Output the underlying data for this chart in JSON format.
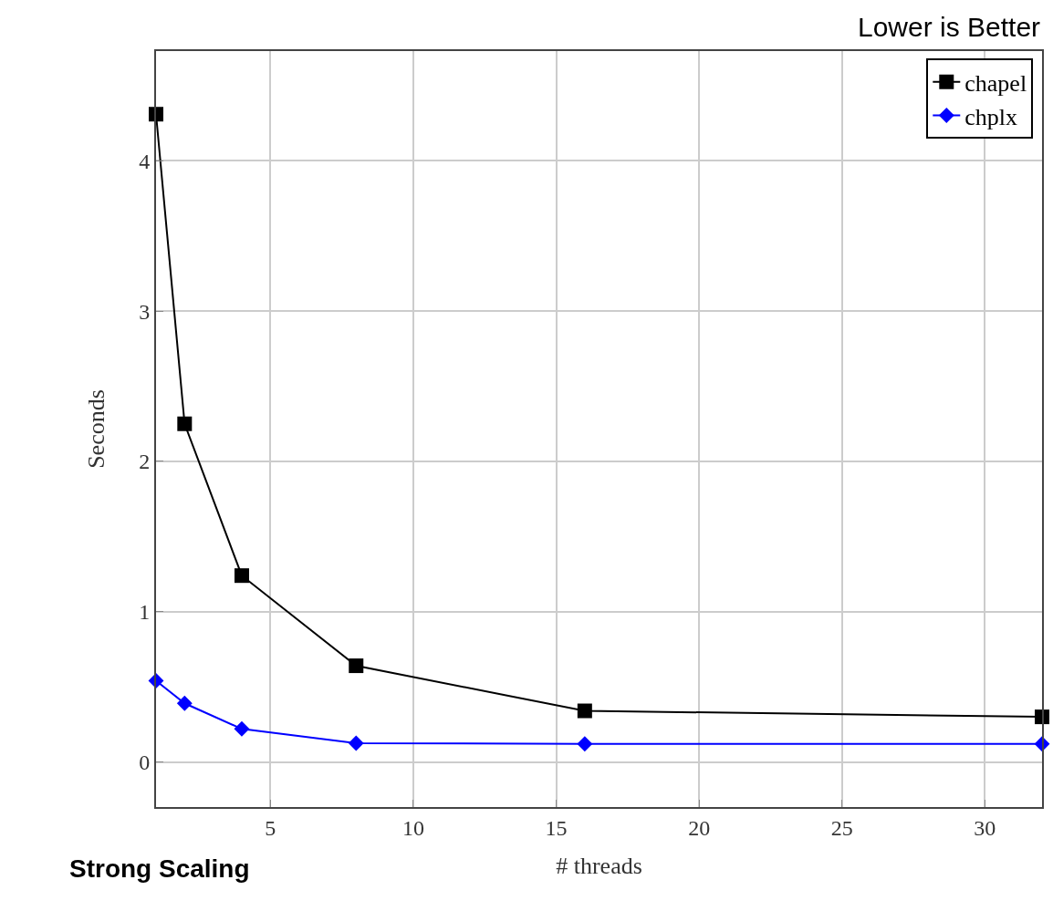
{
  "chart_data": {
    "type": "line",
    "xlabel": "# threads",
    "ylabel": "Seconds",
    "x": [
      1,
      2,
      4,
      8,
      16,
      32
    ],
    "series": [
      {
        "name": "chapel",
        "color": "#000000",
        "marker": "square",
        "values": [
          4.31,
          2.25,
          1.24,
          0.64,
          0.34,
          0.3
        ]
      },
      {
        "name": "chplx",
        "color": "#0000ff",
        "marker": "diamond",
        "values": [
          0.54,
          0.39,
          0.22,
          0.125,
          0.12,
          0.12
        ]
      }
    ],
    "xlim": [
      1,
      32
    ],
    "xticks": [
      5,
      10,
      15,
      20,
      25,
      30
    ],
    "ylim": [
      -0.3,
      4.73
    ],
    "yticks": [
      0,
      1,
      2,
      3,
      4
    ],
    "grid": true,
    "legend": "top right",
    "line_style": "solid",
    "annotations": [
      "Lower is Better",
      "Strong Scaling"
    ]
  }
}
